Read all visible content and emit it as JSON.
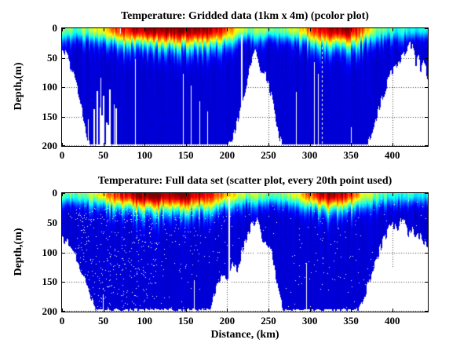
{
  "figure": {
    "background": "#ffffff",
    "axis_color": "#000000",
    "grid_style": "dotted",
    "colormap": "jet",
    "colormap_hint_colors": {
      "deep_water": "#0000c8",
      "thermocline": "#00ffff",
      "warm_surface": "#ff0000",
      "warmest_surface": "#800000",
      "no_data": "#ffffff"
    }
  },
  "chart_data": [
    {
      "type": "heatmap",
      "title": "Temperature: Gridded data (1km x 4m) (pcolor plot)",
      "xlabel": "",
      "ylabel": "Depth,(m)",
      "xlim": [
        0,
        443
      ],
      "ylim": [
        200,
        0
      ],
      "xticks": [
        0,
        50,
        100,
        150,
        200,
        250,
        300,
        350,
        400
      ],
      "yticks": [
        0,
        50,
        100,
        150,
        200
      ],
      "grid": true,
      "seed": 11,
      "bathymetry_km_depth": [
        [
          0,
          30
        ],
        [
          6,
          45
        ],
        [
          12,
          72
        ],
        [
          17,
          95
        ],
        [
          22,
          128
        ],
        [
          27,
          160
        ],
        [
          33,
          200
        ],
        [
          200,
          200
        ],
        [
          205,
          195
        ],
        [
          212,
          158
        ],
        [
          218,
          122
        ],
        [
          224,
          88
        ],
        [
          230,
          52
        ],
        [
          234,
          36
        ],
        [
          237,
          52
        ],
        [
          240,
          72
        ],
        [
          246,
          80
        ],
        [
          250,
          95
        ],
        [
          254,
          118
        ],
        [
          258,
          148
        ],
        [
          262,
          178
        ],
        [
          266,
          200
        ],
        [
          368,
          200
        ],
        [
          377,
          168
        ],
        [
          384,
          132
        ],
        [
          391,
          102
        ],
        [
          397,
          80
        ],
        [
          403,
          68
        ],
        [
          409,
          55
        ],
        [
          415,
          43
        ],
        [
          420,
          30
        ],
        [
          424,
          27
        ],
        [
          426,
          42
        ],
        [
          428,
          58
        ],
        [
          431,
          48
        ],
        [
          434,
          72
        ],
        [
          437,
          58
        ],
        [
          440,
          68
        ],
        [
          443,
          86
        ]
      ],
      "surface_temp_km_t": [
        [
          0,
          0.5
        ],
        [
          15,
          0.47
        ],
        [
          30,
          0.52
        ],
        [
          45,
          0.6
        ],
        [
          55,
          0.72
        ],
        [
          65,
          0.82
        ],
        [
          75,
          0.88
        ],
        [
          85,
          0.92
        ],
        [
          95,
          0.96
        ],
        [
          105,
          0.99
        ],
        [
          115,
          1.0
        ],
        [
          160,
          1.0
        ],
        [
          175,
          0.97
        ],
        [
          185,
          0.92
        ],
        [
          192,
          0.85
        ],
        [
          198,
          0.78
        ],
        [
          205,
          0.72
        ],
        [
          210,
          0.65
        ],
        [
          215,
          0.6
        ],
        [
          220,
          0.55
        ],
        [
          226,
          0.52
        ],
        [
          232,
          0.5
        ],
        [
          240,
          0.52
        ],
        [
          250,
          0.5
        ],
        [
          258,
          0.48
        ],
        [
          266,
          0.5
        ],
        [
          275,
          0.55
        ],
        [
          285,
          0.6
        ],
        [
          295,
          0.72
        ],
        [
          305,
          0.82
        ],
        [
          315,
          0.9
        ],
        [
          325,
          0.94
        ],
        [
          335,
          0.97
        ],
        [
          345,
          0.95
        ],
        [
          355,
          0.9
        ],
        [
          362,
          0.8
        ],
        [
          370,
          0.65
        ],
        [
          378,
          0.55
        ],
        [
          388,
          0.48
        ],
        [
          398,
          0.44
        ],
        [
          410,
          0.4
        ],
        [
          420,
          0.42
        ],
        [
          430,
          0.38
        ],
        [
          443,
          0.4
        ]
      ],
      "missing_columns": [
        {
          "km": 31,
          "from": 155
        },
        {
          "km": 47,
          "from": 85
        },
        {
          "km": 63,
          "from": 130
        },
        {
          "km": 70,
          "from": 0,
          "to": 9
        },
        {
          "km": 88,
          "from": 52
        },
        {
          "km": 146,
          "from": 78
        },
        {
          "km": 156,
          "from": 98
        },
        {
          "km": 166,
          "from": 125
        },
        {
          "km": 176,
          "from": 142
        },
        {
          "km": 217,
          "from": 11,
          "w": 2
        },
        {
          "km": 283,
          "from": 108
        },
        {
          "km": 305,
          "from": 58
        },
        {
          "km": 310,
          "from": 78
        },
        {
          "km": 315,
          "from": 30,
          "dash": true
        },
        {
          "km": 350,
          "from": 168
        }
      ],
      "slope_gaps": {
        "km_range": [
          25,
          66
        ],
        "prob": 0.35,
        "min_depth": 95
      },
      "speckle": null
    },
    {
      "type": "scatter",
      "title": "Temperature: Full data set (scatter plot, every 20th point used)",
      "xlabel": "Distance, (km)",
      "ylabel": "Depth,(m)",
      "xlim": [
        0,
        443
      ],
      "ylim": [
        200,
        0
      ],
      "xticks": [
        0,
        50,
        100,
        150,
        200,
        250,
        300,
        350,
        400
      ],
      "yticks": [
        0,
        50,
        100,
        150,
        200
      ],
      "grid": true,
      "seed": 29,
      "bathymetry_km_depth": [
        [
          0,
          75
        ],
        [
          8,
          85
        ],
        [
          14,
          102
        ],
        [
          20,
          122
        ],
        [
          28,
          150
        ],
        [
          36,
          178
        ],
        [
          44,
          200
        ],
        [
          178,
          200
        ],
        [
          188,
          155
        ],
        [
          196,
          138
        ],
        [
          200,
          142
        ],
        [
          206,
          118
        ],
        [
          212,
          126
        ],
        [
          218,
          96
        ],
        [
          226,
          64
        ],
        [
          232,
          48
        ],
        [
          235,
          44
        ],
        [
          239,
          62
        ],
        [
          243,
          82
        ],
        [
          250,
          86
        ],
        [
          254,
          102
        ],
        [
          258,
          140
        ],
        [
          263,
          176
        ],
        [
          268,
          196
        ],
        [
          272,
          200
        ],
        [
          355,
          200
        ],
        [
          363,
          182
        ],
        [
          371,
          150
        ],
        [
          378,
          120
        ],
        [
          384,
          96
        ],
        [
          390,
          76
        ],
        [
          396,
          60
        ],
        [
          402,
          54
        ],
        [
          406,
          68
        ],
        [
          410,
          44
        ],
        [
          413,
          35
        ],
        [
          416,
          56
        ],
        [
          419,
          70
        ],
        [
          423,
          58
        ],
        [
          427,
          78
        ],
        [
          432,
          68
        ],
        [
          437,
          84
        ],
        [
          443,
          92
        ]
      ],
      "surface_temp_km_t": [
        [
          0,
          0.5
        ],
        [
          15,
          0.48
        ],
        [
          30,
          0.53
        ],
        [
          45,
          0.62
        ],
        [
          55,
          0.74
        ],
        [
          65,
          0.84
        ],
        [
          75,
          0.9
        ],
        [
          85,
          0.95
        ],
        [
          95,
          0.99
        ],
        [
          105,
          1.0
        ],
        [
          150,
          1.0
        ],
        [
          165,
          0.95
        ],
        [
          175,
          0.9
        ],
        [
          185,
          0.84
        ],
        [
          192,
          0.78
        ],
        [
          200,
          0.7
        ],
        [
          210,
          0.62
        ],
        [
          220,
          0.55
        ],
        [
          230,
          0.52
        ],
        [
          240,
          0.54
        ],
        [
          250,
          0.5
        ],
        [
          260,
          0.48
        ],
        [
          270,
          0.52
        ],
        [
          280,
          0.58
        ],
        [
          290,
          0.68
        ],
        [
          300,
          0.8
        ],
        [
          310,
          0.9
        ],
        [
          320,
          0.95
        ],
        [
          330,
          0.96
        ],
        [
          340,
          0.93
        ],
        [
          348,
          0.85
        ],
        [
          356,
          0.75
        ],
        [
          364,
          0.62
        ],
        [
          372,
          0.54
        ],
        [
          382,
          0.48
        ],
        [
          392,
          0.44
        ],
        [
          402,
          0.42
        ],
        [
          412,
          0.4
        ],
        [
          422,
          0.42
        ],
        [
          432,
          0.38
        ],
        [
          443,
          0.4
        ]
      ],
      "missing_columns": [
        {
          "km": 49,
          "from": 172
        },
        {
          "km": 160,
          "from": 148
        },
        {
          "km": 202,
          "from": 7,
          "w": 2
        },
        {
          "km": 296,
          "from": 118
        },
        {
          "km": 400,
          "from": 128
        }
      ],
      "slope_gaps": null,
      "speckle": {
        "base": 0.005,
        "min_depth": 6,
        "zones": [
          {
            "km": [
              15,
              115
            ],
            "depth": [
              25,
              195
            ],
            "density": 0.03
          },
          {
            "km": [
              120,
              200
            ],
            "depth": [
              20,
              130
            ],
            "density": 0.012
          },
          {
            "km": [
              280,
              360
            ],
            "depth": [
              30,
              170
            ],
            "density": 0.01
          },
          {
            "km": [
              365,
              443
            ],
            "depth": [
              60,
              185
            ],
            "density": 0.008
          }
        ]
      }
    }
  ]
}
